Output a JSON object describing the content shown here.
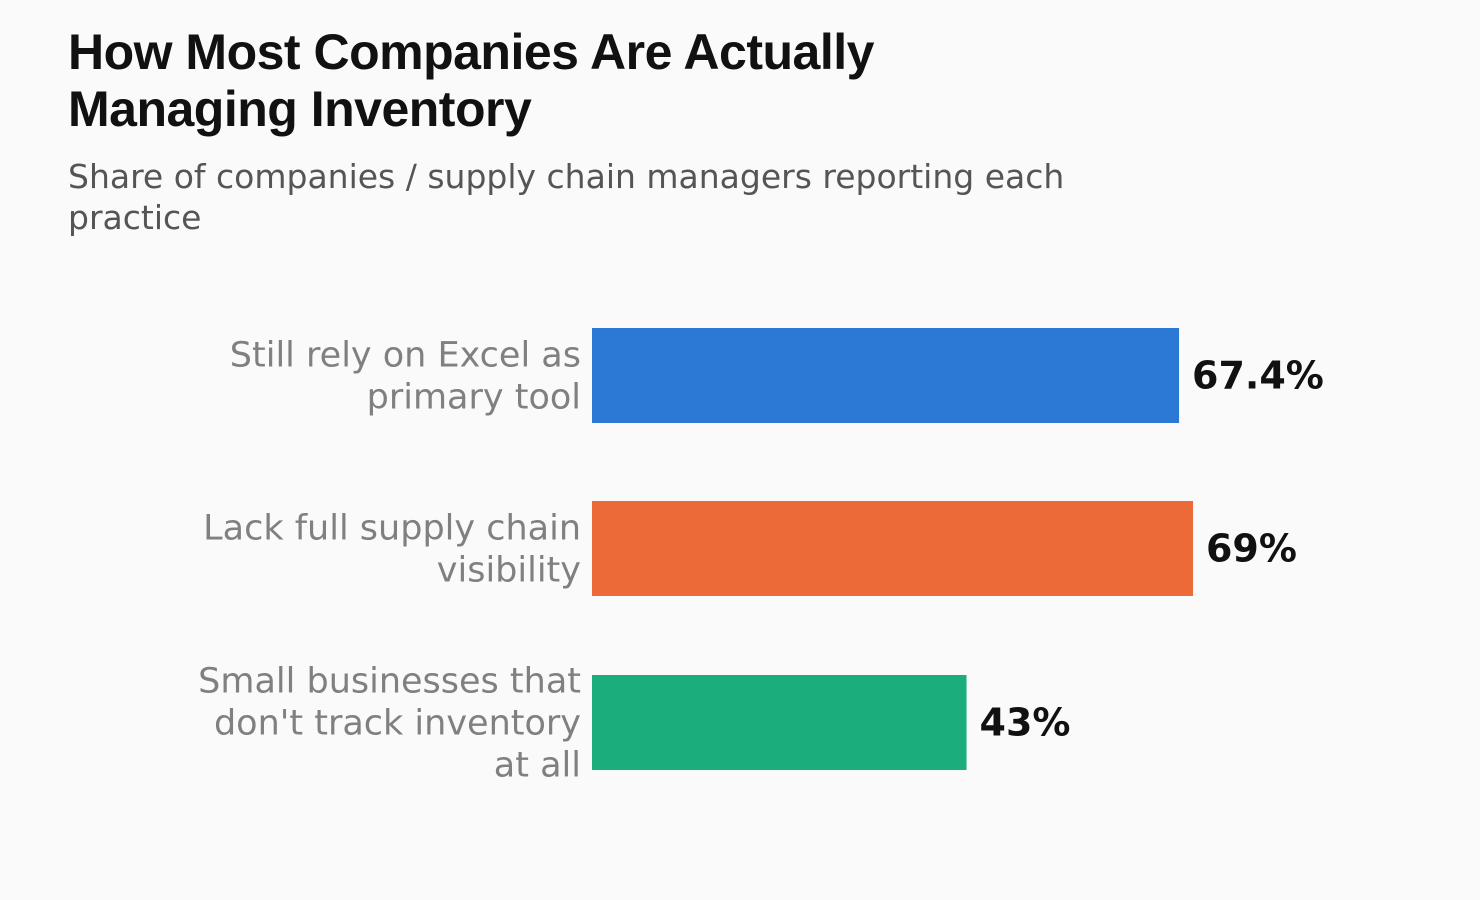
{
  "title": "How Most Companies Are Actually Managing Inventory",
  "subtitle": "Share of companies / supply chain managers reporting each practice",
  "chart_data": {
    "type": "bar",
    "orientation": "horizontal",
    "categories": [
      [
        "Still rely on Excel as",
        "primary tool"
      ],
      [
        "Lack full supply chain",
        "visibility"
      ],
      [
        "Small businesses that",
        "don't track inventory",
        "at all"
      ]
    ],
    "values": [
      67.4,
      69,
      43
    ],
    "value_labels": [
      "67.4%",
      "69%",
      "43%"
    ],
    "colors": [
      "#2b78d5",
      "#eb6a37",
      "#1bae7c"
    ],
    "xlim": [
      0,
      100
    ],
    "grid": false,
    "legend": "none",
    "xlabel": "",
    "ylabel": ""
  }
}
